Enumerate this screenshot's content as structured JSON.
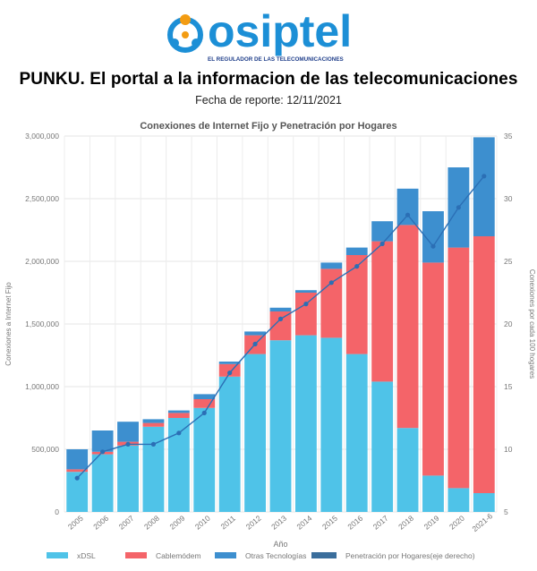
{
  "brand": {
    "name": "osiptel",
    "tagline": "EL REGULADOR DE LAS TELECOMUNICACIONES",
    "colors": {
      "primary": "#1c8fd6",
      "accent": "#f39c12",
      "tagline": "#1f3e8a"
    }
  },
  "report": {
    "title": "PUNKU. El portal a la informacion de las telecomunicaciones",
    "date": "Fecha de reporte: 12/11/2021"
  },
  "chart_data": {
    "type": "bar",
    "stacked": true,
    "title": "Conexiones de Internet Fijo y Penetración por Hogares",
    "xlabel": "Año",
    "ylabel": "Conexiones a Internet Fijo",
    "y2label": "Conexiones por cada 100 hogares",
    "categories": [
      "2005",
      "2006",
      "2007",
      "2008",
      "2009",
      "2010",
      "2011",
      "2012",
      "2013",
      "2014",
      "2015",
      "2016",
      "2017",
      "2018",
      "2019",
      "2020",
      "2021-6"
    ],
    "ylim": [
      0,
      3000000
    ],
    "y_ticks": [
      0,
      500000,
      1000000,
      1500000,
      2000000,
      2500000,
      3000000
    ],
    "y_tick_labels": [
      "0",
      "500,000",
      "1,000,000",
      "1,500,000",
      "2,000,000",
      "2,500,000",
      "3,000,000"
    ],
    "y2lim": [
      5,
      35
    ],
    "y2_ticks": [
      5,
      10,
      15,
      20,
      25,
      30,
      35
    ],
    "y2_tick_labels": [
      "5",
      "10",
      "15",
      "20",
      "25",
      "30",
      "35"
    ],
    "grid": true,
    "legend_position": "bottom",
    "series": [
      {
        "name": "xDSL",
        "color": "#4fc3e8",
        "type": "bar",
        "values": [
          320000,
          460000,
          530000,
          680000,
          750000,
          830000,
          1080000,
          1260000,
          1370000,
          1410000,
          1390000,
          1260000,
          1040000,
          670000,
          290000,
          190000,
          150000
        ]
      },
      {
        "name": "Cablemódem",
        "color": "#f46469",
        "type": "bar",
        "values": [
          20000,
          20000,
          30000,
          30000,
          40000,
          70000,
          100000,
          150000,
          230000,
          340000,
          550000,
          790000,
          1120000,
          1620000,
          1700000,
          1920000,
          2050000
        ]
      },
      {
        "name": "Otras Tecnologías",
        "color": "#3d8fcf",
        "type": "bar",
        "values": [
          160000,
          170000,
          160000,
          30000,
          20000,
          40000,
          20000,
          30000,
          30000,
          20000,
          50000,
          60000,
          160000,
          290000,
          410000,
          640000,
          790000
        ]
      },
      {
        "name": "Penetración por Hogares(eje derecho)",
        "color": "#2b6fb5",
        "legend_color": "#3b6e9c",
        "type": "line",
        "axis": "right",
        "values": [
          7.7,
          9.8,
          10.4,
          10.4,
          11.3,
          12.9,
          16.1,
          18.4,
          20.4,
          21.6,
          23.3,
          24.6,
          26.4,
          28.7,
          26.2,
          29.3,
          31.8
        ]
      }
    ]
  }
}
